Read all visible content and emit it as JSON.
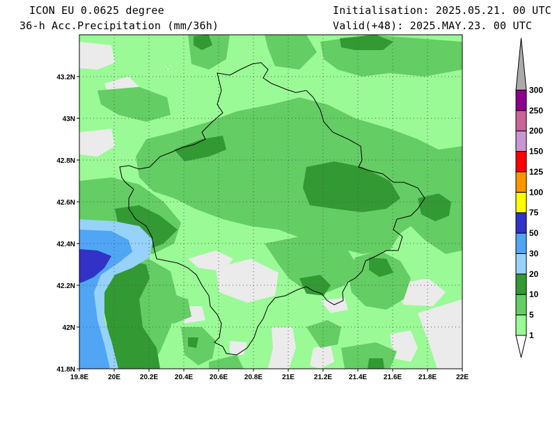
{
  "header": {
    "model": "ICON EU 0.0625 degree",
    "field": "36-h Acc.Precipitation (mm/36h)",
    "init": "Initialisation: 2025.05.21. 00 UTC",
    "valid": "Valid(+48): 2025.MAY.23. 00 UTC"
  },
  "map": {
    "lon_labels": [
      "19.8E",
      "20E",
      "20.2E",
      "20.4E",
      "20.6E",
      "20.8E",
      "21E",
      "21.2E",
      "21.4E",
      "21.6E",
      "21.8E",
      "22E"
    ],
    "lat_labels": [
      "43.2N",
      "43N",
      "42.8N",
      "42.6N",
      "42.4N",
      "42.2N",
      "42N",
      "41.8N"
    ],
    "grid": true,
    "background_color": "#9afa96"
  },
  "colorbar": {
    "labels": [
      "1",
      "5",
      "10",
      "20",
      "30",
      "50",
      "75",
      "100",
      "125",
      "150",
      "200",
      "250",
      "300"
    ],
    "colors": [
      "#9afa96",
      "#64cd64",
      "#339933",
      "#96d2fa",
      "#50a5f5",
      "#3232c8",
      "#ffff00",
      "#ff9600",
      "#ff0000",
      "#c896d2",
      "#c86496",
      "#8c008c",
      "#aaaaaa"
    ]
  }
}
